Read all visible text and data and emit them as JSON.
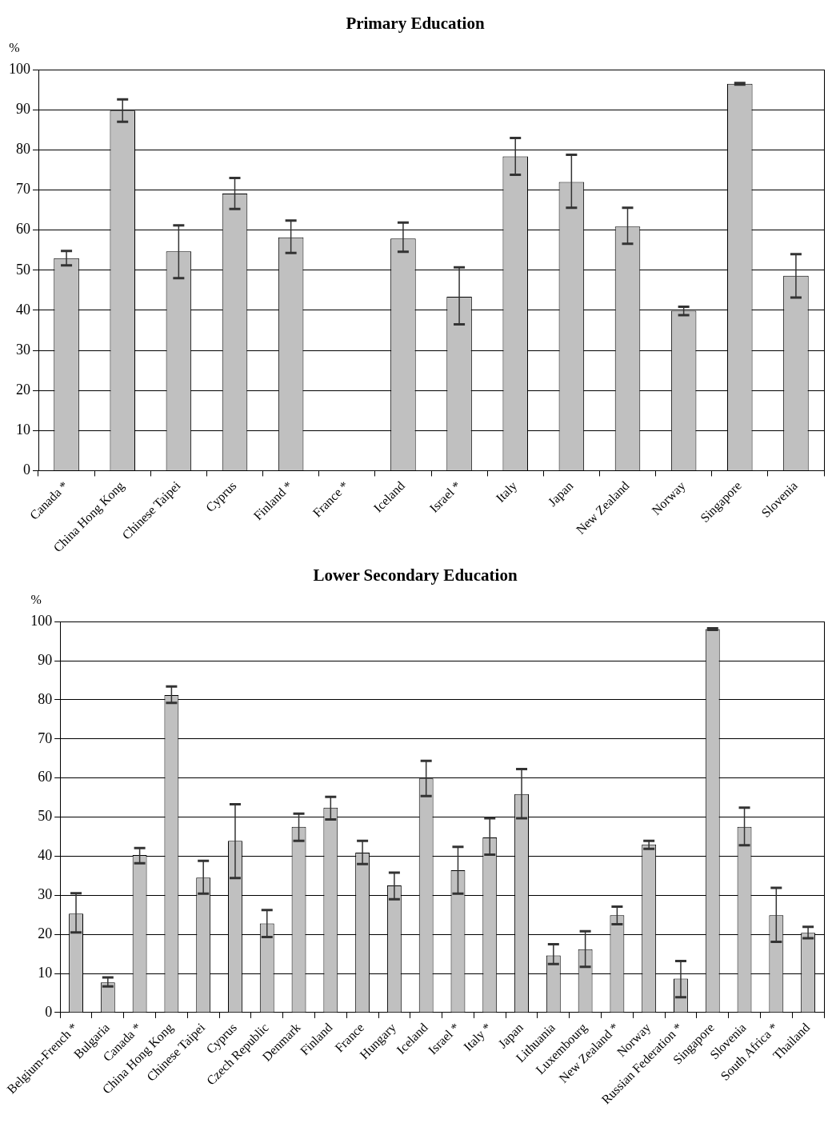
{
  "chart_data": [
    {
      "type": "bar",
      "title": "Primary Education",
      "ylabel": "%",
      "color": "#c0c0c0",
      "ylim": [
        0,
        100
      ],
      "yticks": [
        0,
        10,
        20,
        30,
        40,
        50,
        60,
        70,
        80,
        90,
        100
      ],
      "grid": "y",
      "categories": [
        "Canada *",
        "China Hong Kong",
        "Chinese Taipei",
        "Cyprus",
        "Finland *",
        "France *",
        "Iceland",
        "Israel *",
        "Italy",
        "Japan",
        "New Zealand",
        "Norway",
        "Singapore",
        "Slovenia"
      ],
      "values": [
        53,
        89.8,
        54.7,
        69.1,
        58.2,
        0,
        57.9,
        43.4,
        78.4,
        72.0,
        60.9,
        39.9,
        96.5,
        48.6
      ],
      "errors": [
        [
          51.2,
          54.8
        ],
        [
          87,
          92.6
        ],
        [
          48,
          61.2
        ],
        [
          65.3,
          73
        ],
        [
          54.3,
          62.4
        ],
        null,
        [
          54.6,
          61.9
        ],
        [
          36.5,
          50.7
        ],
        [
          73.8,
          83.0
        ],
        [
          65.6,
          78.8
        ],
        [
          56.6,
          65.6
        ],
        [
          38.8,
          40.9
        ],
        [
          96.3,
          96.7
        ],
        [
          43.2,
          54.0
        ]
      ]
    },
    {
      "type": "bar",
      "title": "Lower Secondary Education",
      "ylabel": "%",
      "color": "#c0c0c0",
      "ylim": [
        0,
        100
      ],
      "yticks": [
        0,
        10,
        20,
        30,
        40,
        50,
        60,
        70,
        80,
        90,
        100
      ],
      "grid": "y",
      "categories": [
        "Belgium-French *",
        "Bulgaria",
        "Canada *",
        "China Hong Kong",
        "Chinese Taipei",
        "Cyprus",
        "Czech Republic",
        "Denmark",
        "Finland",
        "France",
        "Hungary",
        "Iceland",
        "Israel *",
        "Italy *",
        "Japan",
        "Lithuania",
        "Luxembourg",
        "New Zealand *",
        "Norway",
        "Russian Federation *",
        "Singapore",
        "Slovenia",
        "South Africa *",
        "Thailand"
      ],
      "values": [
        25.3,
        7.7,
        40.3,
        81.2,
        34.5,
        43.9,
        22.8,
        47.5,
        52.4,
        40.9,
        32.5,
        59.9,
        36.4,
        44.8,
        55.9,
        14.6,
        16.2,
        24.9,
        43.0,
        8.7,
        98.1,
        47.5,
        24.9,
        20.4
      ],
      "errors": [
        [
          20.5,
          30.5
        ],
        [
          6.7,
          9.0
        ],
        [
          38.2,
          42.1
        ],
        [
          79.2,
          83.4
        ],
        [
          30.4,
          38.8
        ],
        [
          34.4,
          53.3
        ],
        [
          19.3,
          26.2
        ],
        [
          43.9,
          50.9
        ],
        [
          49.4,
          55.2
        ],
        [
          38.0,
          43.9
        ],
        [
          29.0,
          35.8
        ],
        [
          55.4,
          64.4
        ],
        [
          30.4,
          42.4
        ],
        [
          40.4,
          49.7
        ],
        [
          49.7,
          62.3
        ],
        [
          12.4,
          17.5
        ],
        [
          11.7,
          20.8
        ],
        [
          22.6,
          27.1
        ],
        [
          41.9,
          43.9
        ],
        [
          3.9,
          13.2
        ],
        [
          97.9,
          98.3
        ],
        [
          42.8,
          52.4
        ],
        [
          18.1,
          31.9
        ],
        [
          19.0,
          21.9
        ]
      ]
    }
  ]
}
